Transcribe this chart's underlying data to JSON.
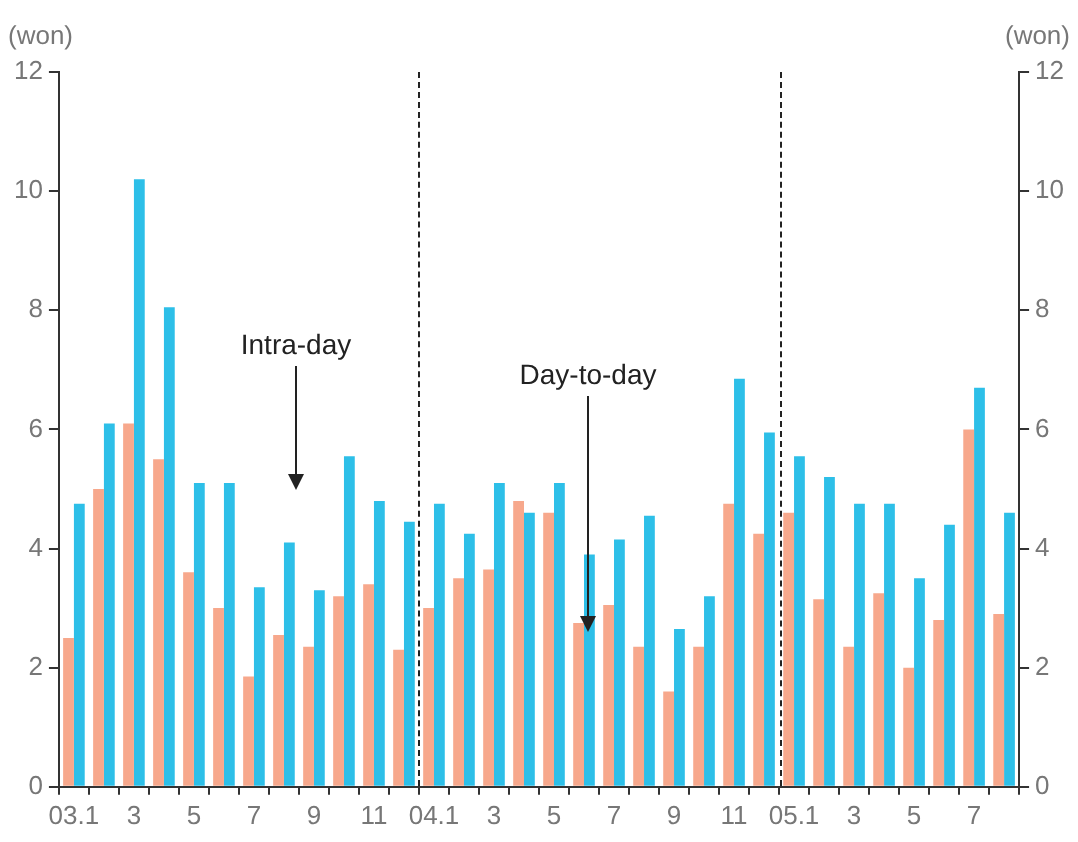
{
  "chart_data": {
    "type": "bar",
    "categories": [
      "03.1",
      null,
      "3",
      null,
      "5",
      null,
      "7",
      null,
      "9",
      null,
      "11",
      null,
      "04.1",
      null,
      "3",
      null,
      "5",
      null,
      "7",
      null,
      "9",
      null,
      "11",
      null,
      "05.1",
      null,
      "3",
      null,
      "5",
      null,
      "7",
      null
    ],
    "series": [
      {
        "name": "Day-to-day",
        "color": "#f7a88c",
        "values": [
          2.5,
          5.0,
          6.1,
          5.5,
          3.6,
          3.0,
          1.85,
          2.55,
          2.35,
          3.2,
          3.4,
          2.3,
          3.0,
          3.5,
          3.65,
          4.8,
          4.6,
          2.75,
          3.05,
          2.35,
          1.6,
          2.35,
          4.75,
          4.25,
          4.6,
          3.15,
          2.35,
          3.25,
          2.0,
          2.8,
          6.0,
          2.9
        ]
      },
      {
        "name": "Intra-day",
        "color": "#2dbfe8",
        "values": [
          4.75,
          6.1,
          10.2,
          8.05,
          5.1,
          5.1,
          3.35,
          4.1,
          3.3,
          5.55,
          4.8,
          4.45,
          4.75,
          4.25,
          5.1,
          4.6,
          5.1,
          3.9,
          4.15,
          4.55,
          2.65,
          3.2,
          6.85,
          5.95,
          5.55,
          5.2,
          4.75,
          4.75,
          3.5,
          4.4,
          6.7,
          4.6
        ]
      }
    ],
    "ylabel": "(won)",
    "y2label": "(won)",
    "ylim": [
      0,
      12
    ],
    "yticks": [
      0,
      2,
      4,
      6,
      8,
      10,
      12
    ],
    "y2lim": [
      0,
      12
    ],
    "y2ticks": [
      0,
      2,
      4,
      6,
      8,
      10,
      12
    ],
    "grid": false,
    "legend": false
  }
}
